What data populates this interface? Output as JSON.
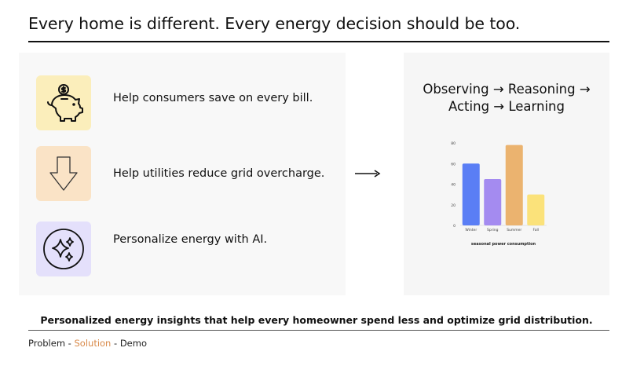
{
  "slide": {
    "title": "Every home is different. Every energy decision should be too.",
    "footer_statement": "Personalized energy insights that help every homeowner spend less and  optimize grid distribution."
  },
  "features": [
    {
      "icon": "piggy-bank-icon",
      "label": "Help consumers save on every bill.",
      "bg": "#fbeebb"
    },
    {
      "icon": "down-arrow-icon",
      "label": "Help utilities reduce grid overcharge.",
      "bg": "#fae3c6"
    },
    {
      "icon": "sparkles-icon",
      "label": "Personalize energy with AI.",
      "bg": "#e4e0fb"
    }
  ],
  "pipeline": {
    "line1": "Observing → Reasoning →",
    "line2": "Acting → Learning"
  },
  "chart_data": {
    "type": "bar",
    "categories": [
      "Winter",
      "Spring",
      "Summer",
      "Fall"
    ],
    "values": [
      60,
      45,
      78,
      30
    ],
    "colors": [
      "#5a7ef5",
      "#a48bf0",
      "#ebb36f",
      "#fbe27a"
    ],
    "ylim": [
      0,
      80
    ],
    "yticks": [
      0,
      20,
      40,
      60,
      80
    ],
    "xlabel": "seasonal power consumption",
    "ylabel": "",
    "grid": false
  },
  "nav": {
    "problem": "Problem",
    "sep1": " - ",
    "solution": "Solution",
    "sep2": " - ",
    "demo": "Demo"
  }
}
